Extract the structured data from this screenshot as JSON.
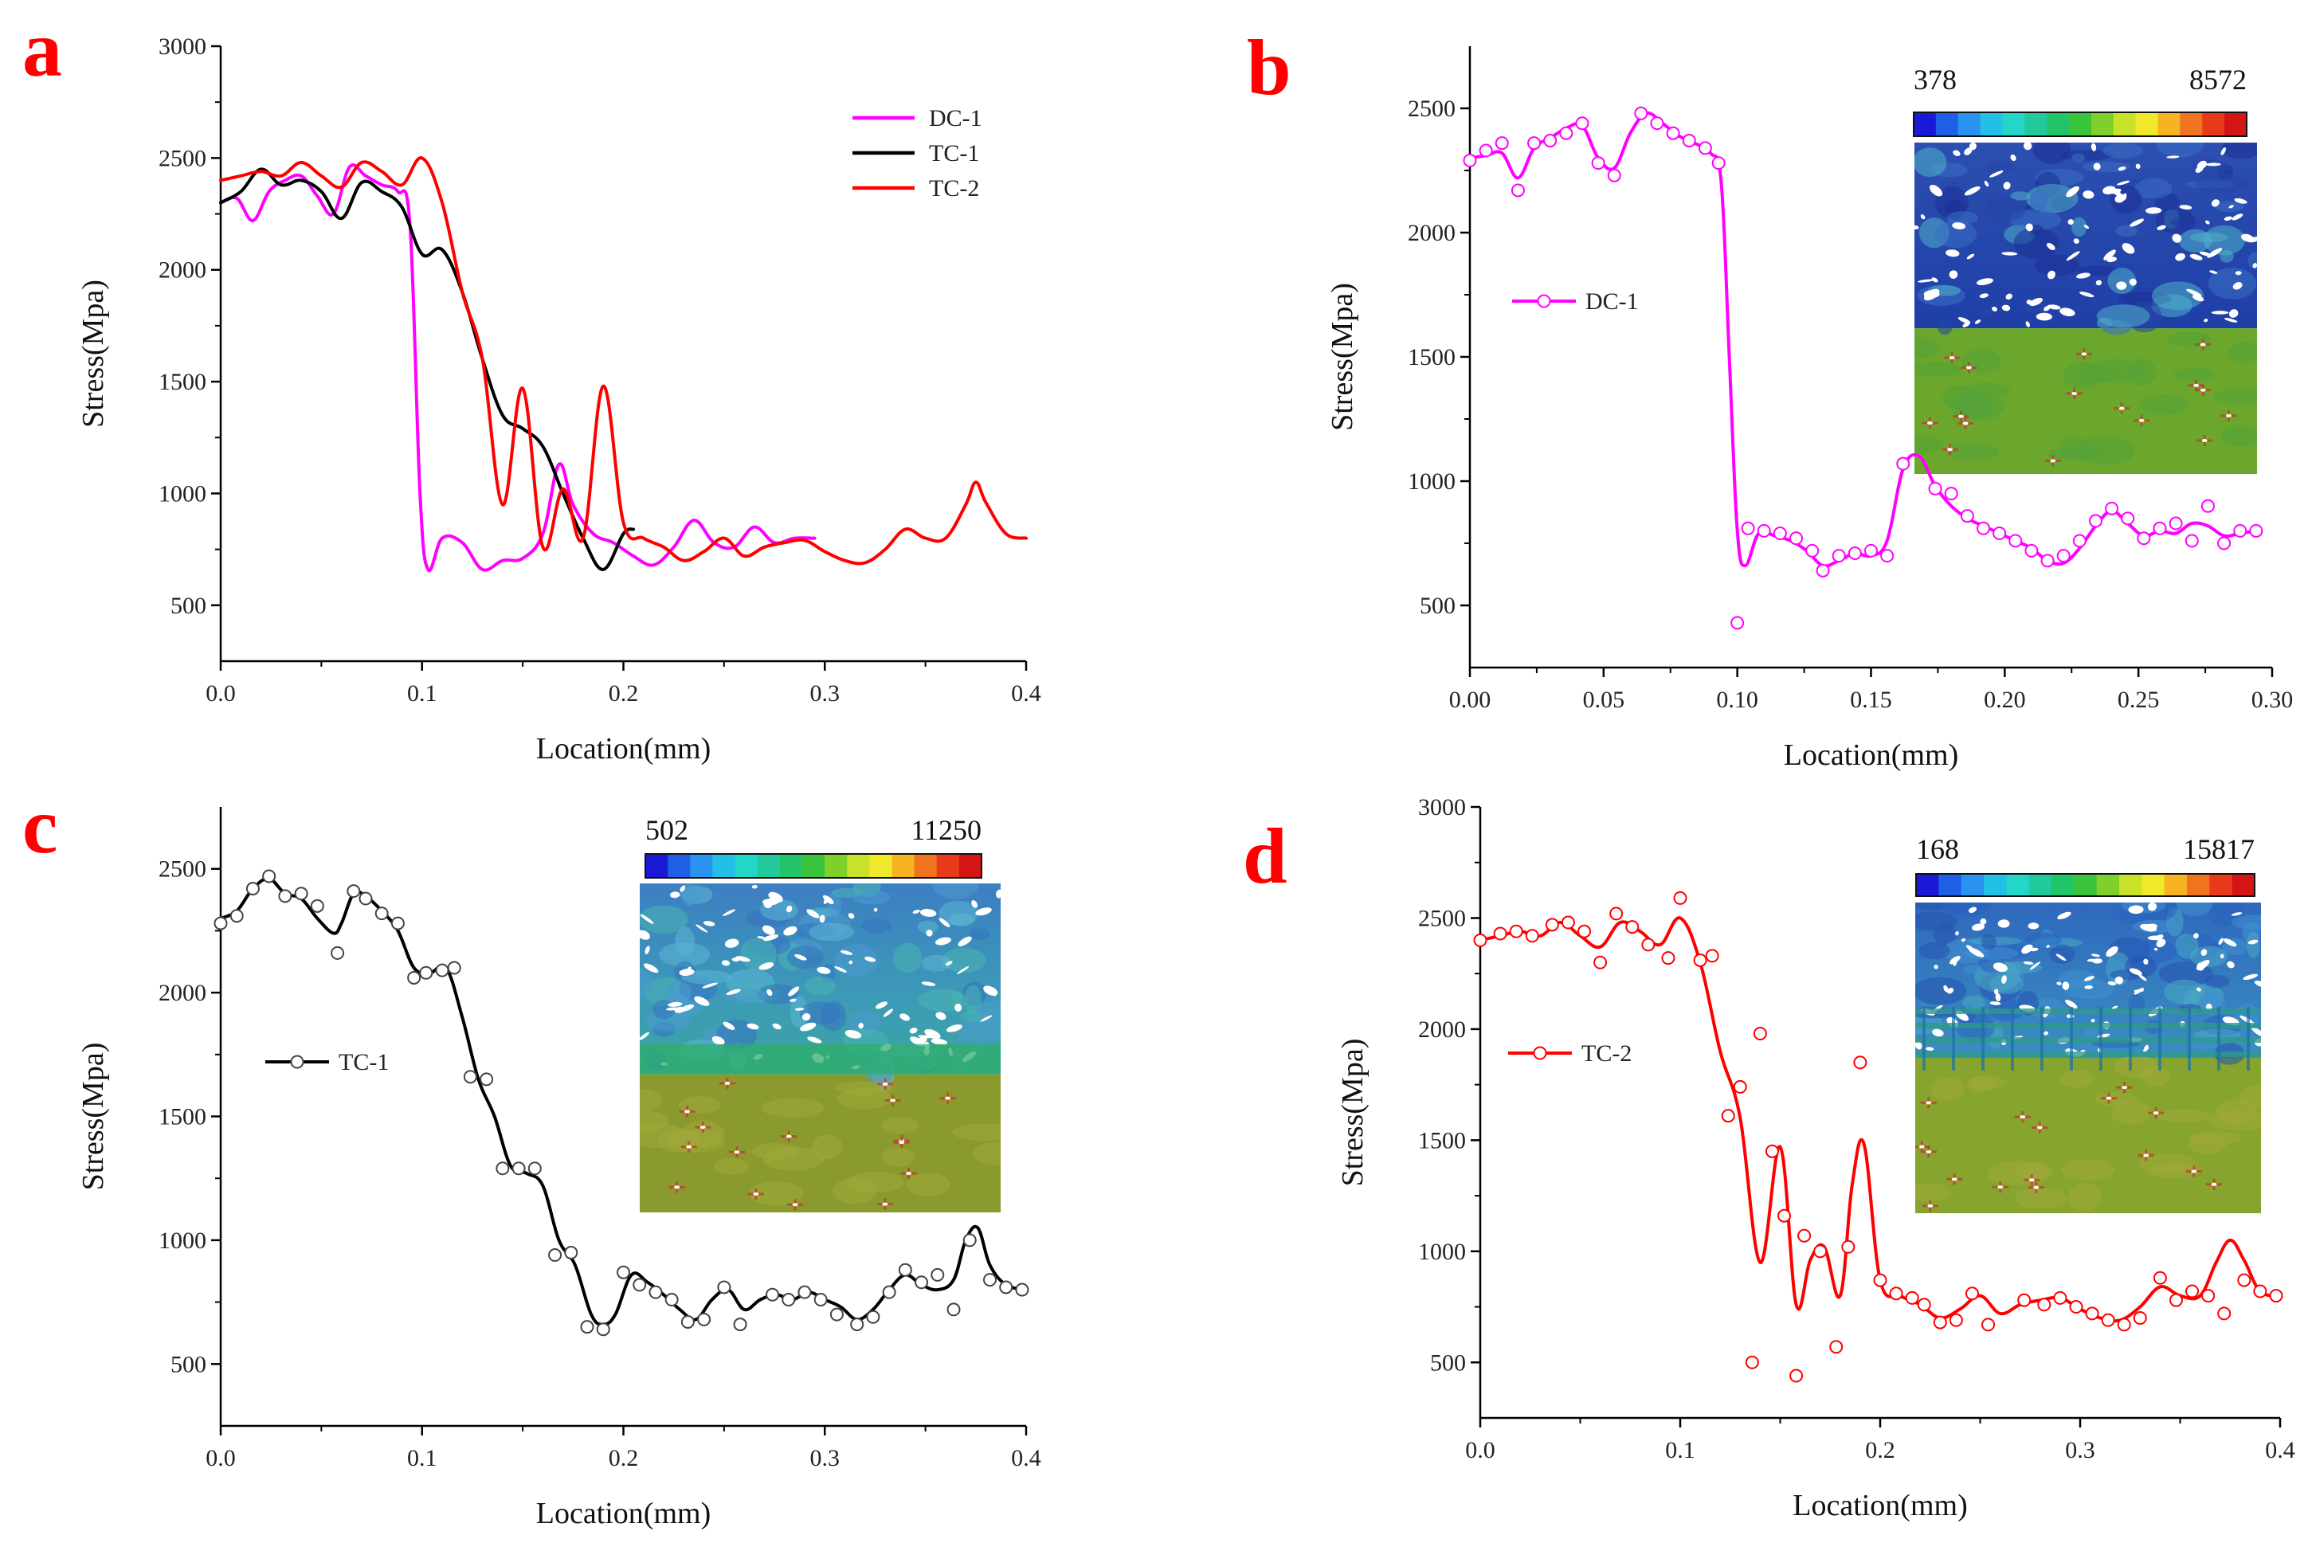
{
  "chart_data": [
    {
      "panel": "a",
      "type": "line",
      "xlabel": "Location(mm)",
      "ylabel": "Stress(Mpa)",
      "xlim": [
        0,
        0.4
      ],
      "ylim": [
        250,
        3000
      ],
      "xticks": [
        0,
        0.1,
        0.2,
        0.3,
        0.4
      ],
      "xtick_labels": [
        "0.0",
        "0.1",
        "0.2",
        "0.3",
        "0.4"
      ],
      "yticks": [
        500,
        1000,
        1500,
        2000,
        2500,
        3000
      ],
      "ytick_labels": [
        "500",
        "1000",
        "1500",
        "2000",
        "2500",
        "3000"
      ],
      "legend": {
        "position": "top-right",
        "style": "line"
      },
      "series": [
        {
          "name": "DC-1",
          "color": "#ff00ff",
          "x": [
            0,
            0.008,
            0.016,
            0.024,
            0.032,
            0.04,
            0.048,
            0.056,
            0.064,
            0.072,
            0.08,
            0.088,
            0.094,
            0.099,
            0.103,
            0.11,
            0.12,
            0.13,
            0.14,
            0.15,
            0.16,
            0.168,
            0.175,
            0.185,
            0.195,
            0.205,
            0.215,
            0.225,
            0.235,
            0.245,
            0.255,
            0.265,
            0.275,
            0.285,
            0.295
          ],
          "y": [
            2300,
            2320,
            2220,
            2350,
            2400,
            2420,
            2330,
            2250,
            2460,
            2420,
            2380,
            2350,
            2200,
            1000,
            660,
            800,
            780,
            660,
            700,
            710,
            820,
            1130,
            950,
            820,
            780,
            720,
            680,
            760,
            880,
            780,
            760,
            850,
            780,
            800,
            800
          ]
        },
        {
          "name": "TC-1",
          "color": "#000000",
          "x": [
            0,
            0.01,
            0.02,
            0.03,
            0.04,
            0.05,
            0.06,
            0.07,
            0.08,
            0.09,
            0.1,
            0.11,
            0.12,
            0.13,
            0.14,
            0.15,
            0.16,
            0.17,
            0.18,
            0.19,
            0.2,
            0.205
          ],
          "y": [
            2300,
            2350,
            2450,
            2380,
            2400,
            2350,
            2230,
            2390,
            2350,
            2280,
            2070,
            2090,
            1900,
            1600,
            1350,
            1290,
            1210,
            1000,
            800,
            660,
            820,
            840
          ]
        },
        {
          "name": "TC-2",
          "color": "#ff0000",
          "x": [
            0,
            0.01,
            0.02,
            0.03,
            0.04,
            0.05,
            0.06,
            0.07,
            0.08,
            0.09,
            0.1,
            0.11,
            0.12,
            0.13,
            0.14,
            0.15,
            0.16,
            0.17,
            0.18,
            0.19,
            0.2,
            0.21,
            0.22,
            0.23,
            0.24,
            0.25,
            0.26,
            0.27,
            0.28,
            0.29,
            0.3,
            0.31,
            0.32,
            0.33,
            0.34,
            0.35,
            0.36,
            0.37,
            0.375,
            0.38,
            0.39,
            0.4
          ],
          "y": [
            2400,
            2420,
            2440,
            2420,
            2480,
            2420,
            2370,
            2480,
            2440,
            2380,
            2500,
            2300,
            1900,
            1600,
            950,
            1470,
            760,
            1020,
            800,
            1480,
            870,
            800,
            760,
            700,
            740,
            800,
            720,
            760,
            780,
            790,
            740,
            700,
            690,
            750,
            840,
            800,
            800,
            950,
            1050,
            960,
            820,
            800
          ]
        }
      ]
    },
    {
      "panel": "b",
      "type": "line",
      "xlabel": "Location(mm)",
      "ylabel": "Stress(Mpa)",
      "xlim": [
        0,
        0.3
      ],
      "ylim": [
        250,
        2750
      ],
      "xticks": [
        0,
        0.05,
        0.1,
        0.15,
        0.2,
        0.25,
        0.3
      ],
      "xtick_labels": [
        "0.00",
        "0.05",
        "0.10",
        "0.15",
        "0.20",
        "0.25",
        "0.30"
      ],
      "yticks": [
        500,
        1000,
        1500,
        2000,
        2500
      ],
      "ytick_labels": [
        "500",
        "1000",
        "1500",
        "2000",
        "2500"
      ],
      "legend": {
        "position": "middle-left",
        "style": "line-marker"
      },
      "colorbar": {
        "min_label": "378",
        "max_label": "8572"
      },
      "series": [
        {
          "name": "DC-1",
          "color": "#ff00ff",
          "x": [
            0,
            0.006,
            0.012,
            0.018,
            0.024,
            0.03,
            0.036,
            0.042,
            0.048,
            0.054,
            0.06,
            0.066,
            0.072,
            0.078,
            0.084,
            0.09,
            0.094,
            0.097,
            0.1,
            0.103,
            0.108,
            0.114,
            0.12,
            0.126,
            0.132,
            0.138,
            0.144,
            0.15,
            0.156,
            0.162,
            0.168,
            0.174,
            0.18,
            0.186,
            0.192,
            0.198,
            0.204,
            0.21,
            0.216,
            0.222,
            0.228,
            0.234,
            0.24,
            0.246,
            0.252,
            0.258,
            0.264,
            0.27,
            0.276,
            0.282,
            0.288,
            0.294
          ],
          "y": [
            2300,
            2310,
            2320,
            2220,
            2340,
            2380,
            2420,
            2430,
            2300,
            2260,
            2400,
            2480,
            2440,
            2390,
            2360,
            2320,
            2200,
            1500,
            800,
            660,
            790,
            780,
            760,
            720,
            660,
            680,
            710,
            700,
            760,
            1050,
            1100,
            980,
            900,
            850,
            820,
            790,
            760,
            730,
            680,
            670,
            730,
            820,
            880,
            830,
            780,
            800,
            790,
            830,
            820,
            780,
            790,
            800
          ],
          "markers_x": [
            0,
            0.006,
            0.012,
            0.018,
            0.024,
            0.03,
            0.036,
            0.042,
            0.048,
            0.054,
            0.064,
            0.07,
            0.076,
            0.082,
            0.088,
            0.093,
            0.1,
            0.104,
            0.11,
            0.116,
            0.122,
            0.128,
            0.132,
            0.138,
            0.144,
            0.15,
            0.156,
            0.162,
            0.174,
            0.18,
            0.186,
            0.192,
            0.198,
            0.204,
            0.21,
            0.216,
            0.222,
            0.228,
            0.234,
            0.24,
            0.246,
            0.252,
            0.258,
            0.264,
            0.27,
            0.276,
            0.282,
            0.288,
            0.294
          ],
          "markers_y": [
            2290,
            2330,
            2360,
            2170,
            2360,
            2370,
            2400,
            2440,
            2280,
            2230,
            2480,
            2440,
            2400,
            2370,
            2340,
            2280,
            430,
            810,
            800,
            790,
            770,
            720,
            640,
            700,
            710,
            720,
            700,
            1070,
            970,
            950,
            860,
            810,
            790,
            760,
            720,
            680,
            700,
            760,
            840,
            890,
            850,
            770,
            810,
            830,
            760,
            900,
            750,
            800,
            800
          ]
        }
      ]
    },
    {
      "panel": "c",
      "type": "line",
      "xlabel": "Location(mm)",
      "ylabel": "Stress(Mpa)",
      "xlim": [
        0,
        0.4
      ],
      "ylim": [
        250,
        2750
      ],
      "xticks": [
        0,
        0.1,
        0.2,
        0.3,
        0.4
      ],
      "xtick_labels": [
        "0.0",
        "0.1",
        "0.2",
        "0.3",
        "0.4"
      ],
      "yticks": [
        500,
        1000,
        1500,
        2000,
        2500
      ],
      "ytick_labels": [
        "500",
        "1000",
        "1500",
        "2000",
        "2500"
      ],
      "legend": {
        "position": "middle-left",
        "style": "line-marker"
      },
      "colorbar": {
        "min_label": "502",
        "max_label": "11250"
      },
      "series": [
        {
          "name": "TC-1",
          "color": "#000000",
          "x": [
            0,
            0.008,
            0.016,
            0.024,
            0.032,
            0.04,
            0.048,
            0.056,
            0.06,
            0.066,
            0.072,
            0.08,
            0.088,
            0.096,
            0.104,
            0.112,
            0.12,
            0.128,
            0.136,
            0.144,
            0.152,
            0.16,
            0.168,
            0.176,
            0.184,
            0.19,
            0.196,
            0.204,
            0.212,
            0.22,
            0.228,
            0.236,
            0.244,
            0.252,
            0.26,
            0.268,
            0.276,
            0.284,
            0.292,
            0.3,
            0.308,
            0.316,
            0.324,
            0.332,
            0.34,
            0.348,
            0.356,
            0.364,
            0.37,
            0.376,
            0.382,
            0.39,
            0.4
          ],
          "y": [
            2300,
            2330,
            2420,
            2460,
            2400,
            2380,
            2300,
            2240,
            2280,
            2400,
            2390,
            2330,
            2250,
            2100,
            2080,
            2100,
            1900,
            1650,
            1500,
            1300,
            1270,
            1220,
            1000,
            900,
            700,
            660,
            700,
            860,
            830,
            780,
            720,
            680,
            760,
            800,
            720,
            760,
            780,
            760,
            790,
            760,
            730,
            680,
            720,
            800,
            860,
            820,
            800,
            840,
            1000,
            1050,
            900,
            820,
            800
          ],
          "markers_x": [
            0,
            0.008,
            0.016,
            0.024,
            0.032,
            0.04,
            0.048,
            0.058,
            0.066,
            0.072,
            0.08,
            0.088,
            0.096,
            0.102,
            0.11,
            0.116,
            0.124,
            0.132,
            0.14,
            0.148,
            0.156,
            0.166,
            0.174,
            0.182,
            0.19,
            0.2,
            0.208,
            0.216,
            0.224,
            0.232,
            0.24,
            0.25,
            0.258,
            0.274,
            0.282,
            0.29,
            0.298,
            0.306,
            0.316,
            0.324,
            0.332,
            0.34,
            0.348,
            0.356,
            0.364,
            0.372,
            0.382,
            0.39,
            0.398
          ],
          "markers_y": [
            2280,
            2310,
            2420,
            2470,
            2390,
            2400,
            2350,
            2160,
            2410,
            2380,
            2320,
            2280,
            2060,
            2080,
            2090,
            2100,
            1660,
            1650,
            1290,
            1290,
            1290,
            940,
            950,
            650,
            640,
            870,
            820,
            790,
            760,
            670,
            680,
            810,
            660,
            780,
            760,
            790,
            760,
            700,
            660,
            690,
            790,
            880,
            830,
            860,
            720,
            1000,
            840,
            810,
            800
          ]
        }
      ]
    },
    {
      "panel": "d",
      "type": "line",
      "xlabel": "Location(mm)",
      "ylabel": "Stress(Mpa)",
      "xlim": [
        0,
        0.4
      ],
      "ylim": [
        250,
        3000
      ],
      "xticks": [
        0,
        0.1,
        0.2,
        0.3,
        0.4
      ],
      "xtick_labels": [
        "0.0",
        "0.1",
        "0.2",
        "0.3",
        "0.4"
      ],
      "yticks": [
        500,
        1000,
        1500,
        2000,
        2500,
        3000
      ],
      "ytick_labels": [
        "500",
        "1000",
        "1500",
        "2000",
        "2500",
        "3000"
      ],
      "legend": {
        "position": "upper-left",
        "style": "line-marker"
      },
      "colorbar": {
        "min_label": "168",
        "max_label": "15817"
      },
      "series": [
        {
          "name": "TC-2",
          "color": "#ff0000",
          "x": [
            0,
            0.01,
            0.02,
            0.03,
            0.04,
            0.05,
            0.06,
            0.07,
            0.08,
            0.09,
            0.1,
            0.11,
            0.12,
            0.13,
            0.14,
            0.15,
            0.158,
            0.165,
            0.172,
            0.18,
            0.186,
            0.192,
            0.2,
            0.21,
            0.22,
            0.23,
            0.24,
            0.25,
            0.26,
            0.27,
            0.28,
            0.29,
            0.3,
            0.31,
            0.32,
            0.33,
            0.34,
            0.35,
            0.36,
            0.368,
            0.375,
            0.382,
            0.39,
            0.4
          ],
          "y": [
            2400,
            2420,
            2440,
            2420,
            2480,
            2420,
            2370,
            2480,
            2440,
            2380,
            2500,
            2300,
            1900,
            1600,
            950,
            1470,
            760,
            960,
            1020,
            800,
            1300,
            1480,
            870,
            800,
            760,
            700,
            740,
            800,
            720,
            760,
            780,
            790,
            740,
            700,
            690,
            750,
            840,
            800,
            800,
            950,
            1050,
            960,
            820,
            800
          ],
          "markers_x": [
            0,
            0.01,
            0.018,
            0.026,
            0.036,
            0.044,
            0.052,
            0.06,
            0.068,
            0.076,
            0.084,
            0.094,
            0.1,
            0.11,
            0.116,
            0.124,
            0.13,
            0.136,
            0.14,
            0.146,
            0.152,
            0.158,
            0.162,
            0.17,
            0.178,
            0.184,
            0.19,
            0.2,
            0.208,
            0.216,
            0.222,
            0.23,
            0.238,
            0.246,
            0.254,
            0.272,
            0.282,
            0.29,
            0.298,
            0.306,
            0.314,
            0.322,
            0.33,
            0.34,
            0.348,
            0.356,
            0.364,
            0.372,
            0.382,
            0.39,
            0.398
          ],
          "markers_y": [
            2400,
            2430,
            2440,
            2420,
            2470,
            2480,
            2440,
            2300,
            2520,
            2460,
            2380,
            2320,
            2590,
            2310,
            2330,
            1610,
            1740,
            500,
            1980,
            1450,
            1160,
            440,
            1070,
            1000,
            570,
            1020,
            1850,
            870,
            810,
            790,
            760,
            680,
            690,
            810,
            670,
            780,
            760,
            790,
            750,
            720,
            690,
            670,
            700,
            880,
            780,
            820,
            800,
            720,
            870,
            820,
            800
          ]
        }
      ]
    }
  ]
}
